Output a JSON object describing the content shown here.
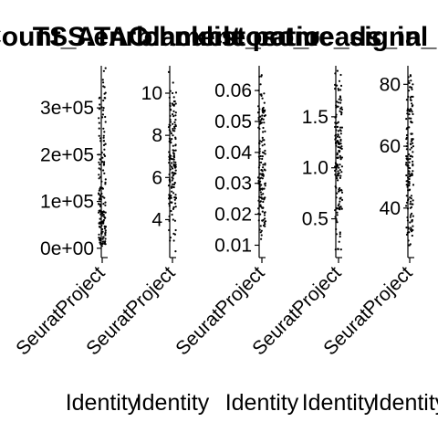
{
  "chart_data": [
    {
      "type": "scatter",
      "title": "nCount_ATAC",
      "xlabel": "Identity",
      "ylabel": "",
      "categories": [
        "SeuratProject"
      ],
      "yticks": [
        "0e+00",
        "1e+05",
        "2e+05",
        "3e+05"
      ],
      "ytick_values": [
        0,
        100000,
        200000,
        300000
      ],
      "ylim": [
        -20000,
        390000
      ],
      "y_sample": [
        5000,
        12000,
        20000,
        28000,
        35000,
        45000,
        55000,
        65000,
        80000,
        95000,
        110000,
        130000,
        160000,
        200000,
        240000,
        270000,
        300000,
        330000,
        360000,
        385000
      ]
    },
    {
      "type": "scatter",
      "title": "TSS.enrichment",
      "xlabel": "Identity",
      "ylabel": "",
      "categories": [
        "SeuratProject"
      ],
      "yticks": [
        "4",
        "6",
        "8",
        "10"
      ],
      "ytick_values": [
        4,
        6,
        8,
        10
      ],
      "ylim": [
        2.2,
        11.3
      ],
      "y_sample": [
        2.5,
        3.0,
        3.5,
        4.0,
        4.5,
        5.0,
        5.5,
        6.0,
        6.5,
        7.0,
        7.5,
        8.0,
        8.5,
        9.0,
        9.5,
        10.0,
        10.5,
        11.0
      ]
    },
    {
      "type": "scatter",
      "title": "blacklist_ratio",
      "xlabel": "Identity",
      "ylabel": "",
      "categories": [
        "SeuratProject"
      ],
      "yticks": [
        "0.01",
        "0.02",
        "0.03",
        "0.04",
        "0.05",
        "0.06"
      ],
      "ytick_values": [
        0.01,
        0.02,
        0.03,
        0.04,
        0.05,
        0.06
      ],
      "ylim": [
        0.006,
        0.068
      ],
      "y_sample": [
        0.012,
        0.015,
        0.018,
        0.02,
        0.022,
        0.025,
        0.028,
        0.03,
        0.033,
        0.036,
        0.04,
        0.044,
        0.048,
        0.052,
        0.056,
        0.06,
        0.065
      ]
    },
    {
      "type": "scatter",
      "title": "nucleosome_signal",
      "xlabel": "Identity",
      "ylabel": "",
      "categories": [
        "SeuratProject"
      ],
      "yticks": [
        "0.5",
        "1.0",
        "1.5"
      ],
      "ytick_values": [
        0.5,
        1.0,
        1.5
      ],
      "ylim": [
        0.12,
        2.0
      ],
      "y_sample": [
        0.2,
        0.35,
        0.5,
        0.6,
        0.7,
        0.8,
        0.9,
        1.0,
        1.1,
        1.2,
        1.3,
        1.4,
        1.5,
        1.6,
        1.7,
        1.85,
        1.95
      ]
    },
    {
      "type": "scatter",
      "title": "pct_reads_in_peaks",
      "xlabel": "Identity",
      "ylabel": "",
      "categories": [
        "SeuratProject"
      ],
      "yticks": [
        "40",
        "60",
        "80"
      ],
      "ytick_values": [
        40,
        60,
        80
      ],
      "ylim": [
        24,
        86
      ],
      "y_sample": [
        28,
        32,
        36,
        40,
        44,
        48,
        52,
        56,
        60,
        64,
        68,
        72,
        76,
        80,
        83
      ]
    }
  ]
}
